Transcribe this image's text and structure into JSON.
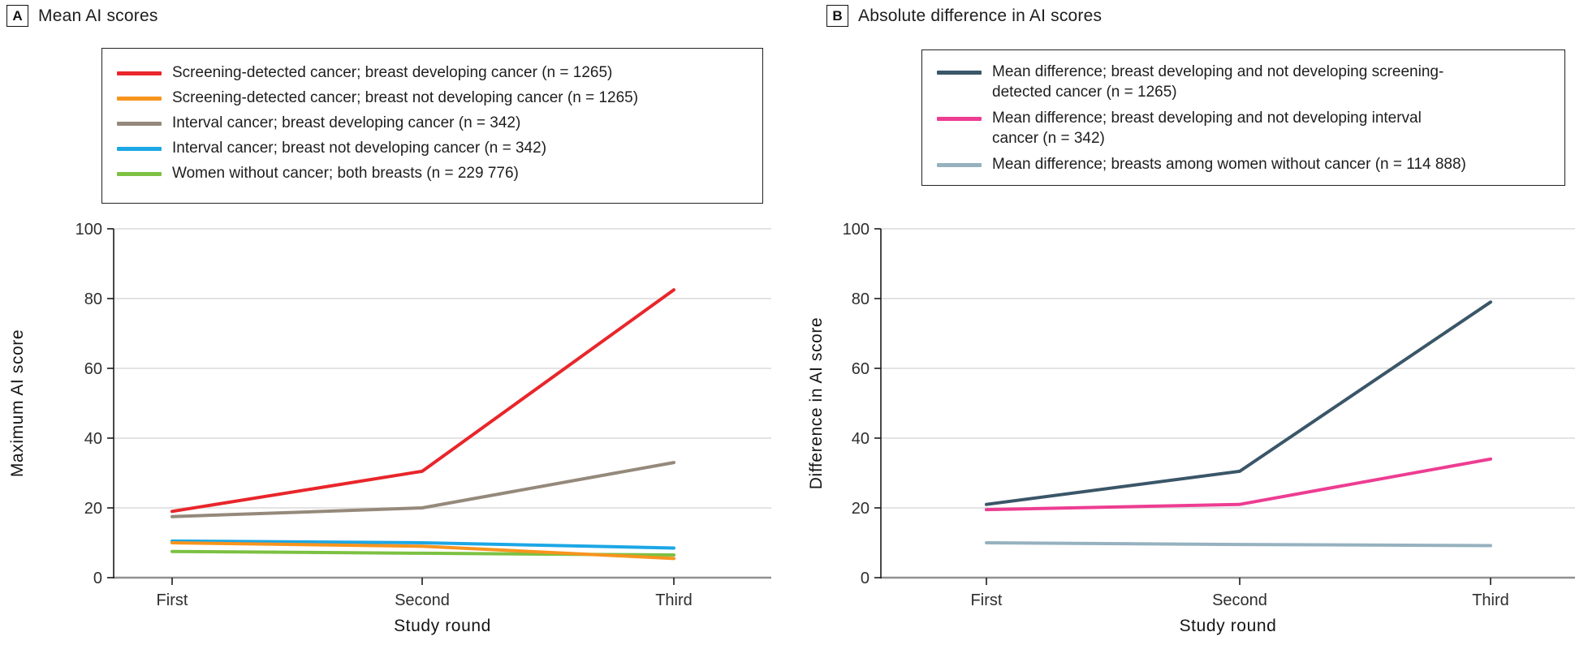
{
  "style": {
    "grid_color": "#e3e3e3",
    "xaxis_color": "#909090",
    "yaxis_color": "#1a1a1a",
    "tick_color": "#1a1a1a",
    "legend_border_color": "#222222",
    "background": "#ffffff"
  },
  "chart_data": [
    {
      "type": "line",
      "panel_label": "A",
      "title": "Mean AI scores",
      "categories": [
        "First",
        "Second",
        "Third"
      ],
      "xlabel": "Study round",
      "ylabel": "Maximum AI score",
      "ylim": [
        0,
        100
      ],
      "yticks": [
        0,
        20,
        40,
        60,
        80,
        100
      ],
      "grid": true,
      "legend_position": "top",
      "series": [
        {
          "label_lines": [
            "Screening-detected cancer; breast developing cancer (n = 1265)"
          ],
          "color": "#e8262b",
          "values": [
            19,
            30.5,
            82.5
          ]
        },
        {
          "label_lines": [
            "Screening-detected cancer; breast not developing cancer (n = 1265)"
          ],
          "color": "#f7941e",
          "values": [
            10,
            9,
            5.5
          ]
        },
        {
          "label_lines": [
            "Interval cancer; breast developing cancer (n = 342)"
          ],
          "color": "#95897b",
          "values": [
            17.5,
            20,
            33
          ]
        },
        {
          "label_lines": [
            "Interval cancer; breast not developing cancer (n = 342)"
          ],
          "color": "#1ca7e5",
          "values": [
            10.5,
            10,
            8.5
          ]
        },
        {
          "label_lines": [
            "Women without cancer; both breasts (n = 229 776)"
          ],
          "color": "#7cc142",
          "values": [
            7.5,
            7,
            6.5
          ]
        }
      ]
    },
    {
      "type": "line",
      "panel_label": "B",
      "title": "Absolute difference in AI scores",
      "categories": [
        "First",
        "Second",
        "Third"
      ],
      "xlabel": "Study round",
      "ylabel": "Difference in AI score",
      "ylim": [
        0,
        100
      ],
      "yticks": [
        0,
        20,
        40,
        60,
        80,
        100
      ],
      "grid": true,
      "legend_position": "top",
      "series": [
        {
          "label_lines": [
            "Mean difference; breast developing and not developing screening-",
            "detected cancer (n = 1265)"
          ],
          "color": "#3a5668",
          "values": [
            21,
            30.5,
            79
          ]
        },
        {
          "label_lines": [
            "Mean difference; breast developing and not developing interval",
            "cancer (n = 342)"
          ],
          "color": "#ed3d92",
          "values": [
            19.5,
            21,
            34
          ]
        },
        {
          "label_lines": [
            "Mean difference; breasts among women without cancer (n = 114 888)"
          ],
          "color": "#96b1bf",
          "values": [
            10,
            9.5,
            9.2
          ]
        }
      ]
    }
  ]
}
